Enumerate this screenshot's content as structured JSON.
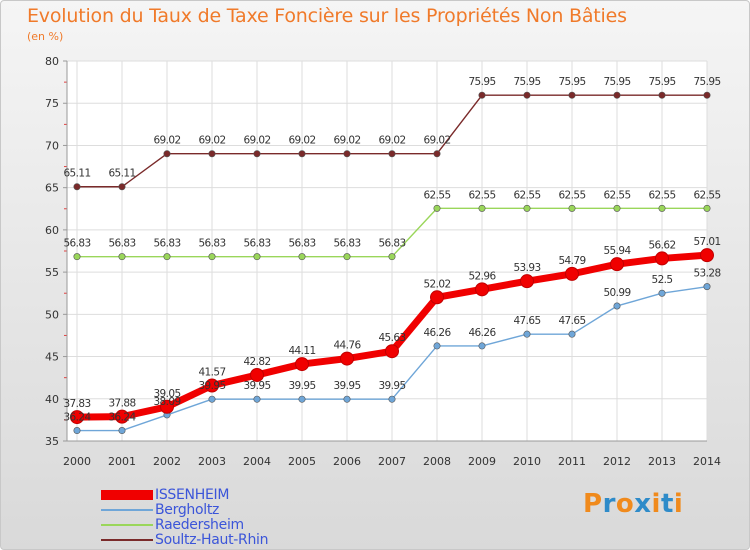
{
  "title": "Evolution du Taux de Taxe Foncière sur les Propriétés Non Bâties",
  "subtitle": "(en %)",
  "logo": {
    "text": "Proxiti",
    "colors": [
      "#f08a1c",
      "#2e8bc9",
      "#f08a1c",
      "#2e8bc9",
      "#f08a1c",
      "#2e8bc9",
      "#f08a1c"
    ]
  },
  "chart_data": {
    "type": "line",
    "title": "Evolution du Taux de Taxe Foncière sur les Propriétés Non Bâties",
    "ylabel": "(en %)",
    "x": [
      2000,
      2001,
      2002,
      2003,
      2004,
      2005,
      2006,
      2007,
      2008,
      2009,
      2010,
      2011,
      2012,
      2013,
      2014
    ],
    "ylim": [
      35,
      80
    ],
    "yticks": [
      35,
      40,
      45,
      50,
      55,
      60,
      65,
      70,
      75,
      80
    ],
    "grid": true,
    "legend_position": "bottom-left",
    "series": [
      {
        "name": "ISSENHEIM",
        "color": "#f00000",
        "values": [
          37.83,
          37.88,
          39.05,
          41.57,
          42.82,
          44.11,
          44.76,
          45.63,
          52.02,
          52.96,
          53.93,
          54.79,
          55.94,
          56.62,
          57.01
        ],
        "labels": [
          "37.83",
          "37.88",
          "39.05",
          "41.57",
          "42.82",
          "44.11",
          "44.76",
          "45.63",
          "52.02",
          "52.96",
          "53.93",
          "54.79",
          "55.94",
          "56.62",
          "57.01"
        ]
      },
      {
        "name": "Bergholtz",
        "color": "#6fa6d8",
        "values": [
          36.24,
          36.24,
          38.09,
          39.95,
          39.95,
          39.95,
          39.95,
          39.95,
          46.26,
          46.26,
          47.65,
          47.65,
          50.99,
          52.5,
          53.28
        ],
        "labels": [
          "36.24",
          "36.24",
          "38.09",
          "39.95",
          "39.95",
          "39.95",
          "39.95",
          "39.95",
          "46.26",
          "46.26",
          "47.65",
          "47.65",
          "50.99",
          "52.5",
          "53.28"
        ]
      },
      {
        "name": "Raedersheim",
        "color": "#9ad65a",
        "values": [
          56.83,
          56.83,
          56.83,
          56.83,
          56.83,
          56.83,
          56.83,
          56.83,
          62.55,
          62.55,
          62.55,
          62.55,
          62.55,
          62.55,
          62.55
        ],
        "labels": [
          "56.83",
          "56.83",
          "56.83",
          "56.83",
          "56.83",
          "56.83",
          "56.83",
          "56.83",
          "62.55",
          "62.55",
          "62.55",
          "62.55",
          "62.55",
          "62.55",
          "62.55"
        ]
      },
      {
        "name": "Soultz-Haut-Rhin",
        "color": "#7a2a2a",
        "values": [
          65.11,
          65.11,
          69.02,
          69.02,
          69.02,
          69.02,
          69.02,
          69.02,
          69.02,
          75.95,
          75.95,
          75.95,
          75.95,
          75.95,
          75.95
        ],
        "labels": [
          "65.11",
          "65.11",
          "69.02",
          "69.02",
          "69.02",
          "69.02",
          "69.02",
          "69.02",
          "69.02",
          "75.95",
          "75.95",
          "75.95",
          "75.95",
          "75.95",
          "75.95"
        ]
      }
    ]
  }
}
